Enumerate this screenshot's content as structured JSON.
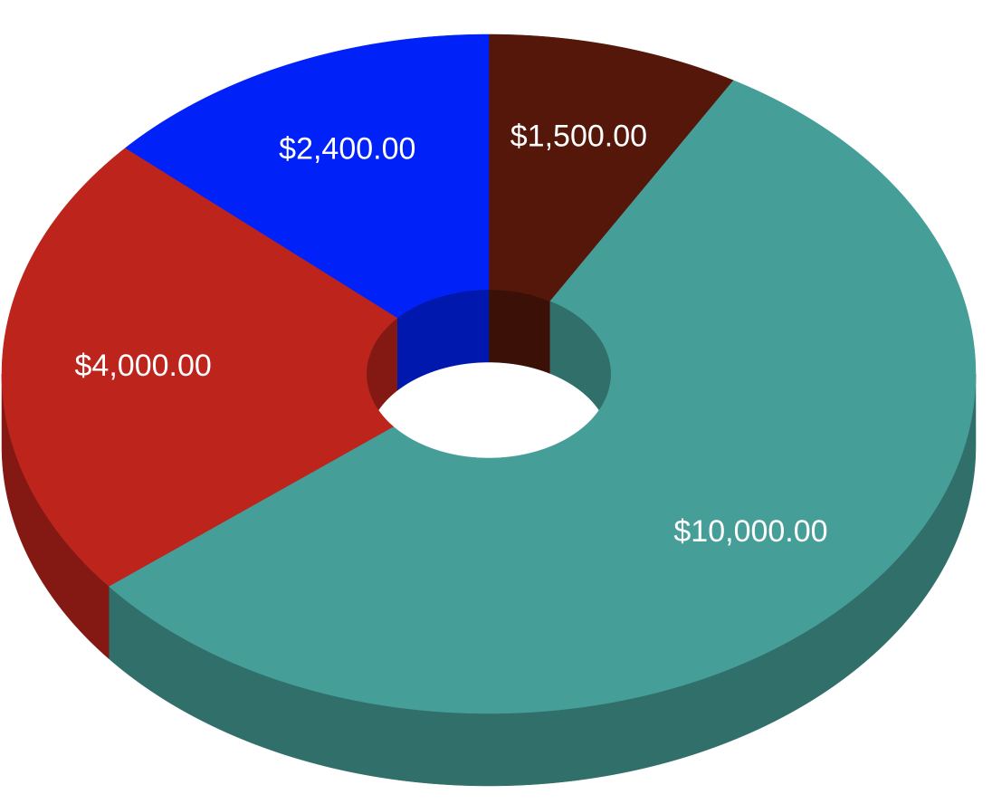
{
  "chart_data": {
    "type": "pie",
    "donut": true,
    "values": [
      1500,
      10000,
      4000,
      2400
    ],
    "value_labels": [
      "$1,500.00",
      "$10,000.00",
      "$4,000.00",
      "$2,400.00"
    ],
    "colors": [
      "#541709",
      "#469e99",
      "#bc241c",
      "#0022f8"
    ]
  }
}
